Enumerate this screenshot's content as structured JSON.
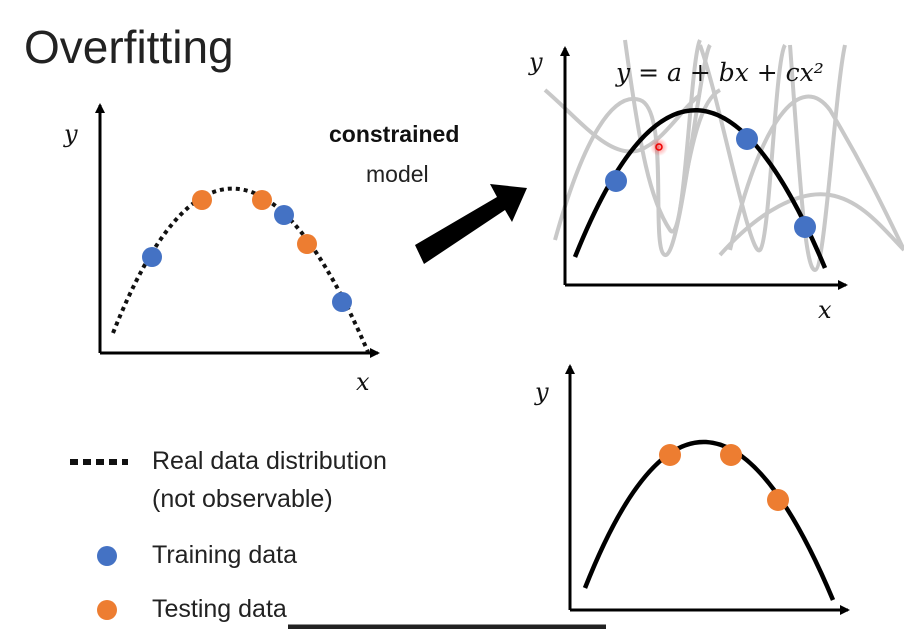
{
  "slide": {
    "title": "Overfitting",
    "arrow_label_bold": "constrained",
    "arrow_label": "model",
    "formula": "y = a + bx + cx²"
  },
  "axes": {
    "y_label": "y",
    "x_label": "x"
  },
  "legend": {
    "items": [
      {
        "label": "Real data distribution",
        "sublabel": "(not observable)",
        "marker": "dotted-line"
      },
      {
        "label": "Training data",
        "marker": "dot",
        "color": "#4472C4"
      },
      {
        "label": "Testing data",
        "marker": "dot",
        "color": "#ED7D31"
      }
    ]
  },
  "colors": {
    "training": "#4472C4",
    "testing": "#ED7D31",
    "candidate_curves": "#C8C8C8",
    "fit": "#000000"
  }
}
